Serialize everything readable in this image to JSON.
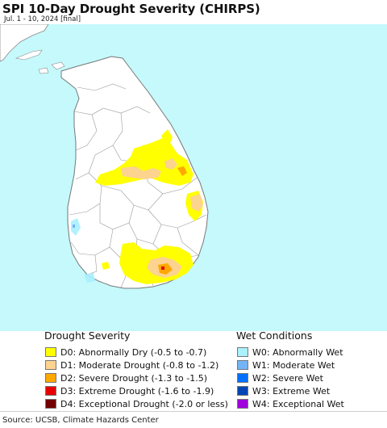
{
  "header": {
    "title": "SPI 10-Day Drought Severity (CHIRPS)",
    "subtitle": "Jul. 1 - 10, 2024 [final]"
  },
  "map": {
    "ocean_color": "#c5f9fb",
    "land_color": "#ffffff",
    "border_color": "#8a8a8a"
  },
  "legend": {
    "drought": {
      "heading": "Drought Severity",
      "items": [
        {
          "label": "D0: Abnormally Dry (-0.5 to -0.7)",
          "color": "#ffff00"
        },
        {
          "label": "D1: Moderate Drought (-0.8 to -1.2)",
          "color": "#fcd38f"
        },
        {
          "label": "D2: Severe Drought (-1.3 to -1.5)",
          "color": "#ffa800"
        },
        {
          "label": "D3: Extreme Drought (-1.6 to -1.9)",
          "color": "#e60000"
        },
        {
          "label": "D4: Exceptional Drought (-2.0 or less)",
          "color": "#730000"
        }
      ]
    },
    "wet": {
      "heading": "Wet Conditions",
      "items": [
        {
          "label": "W0: Abnormally Wet",
          "color": "#aaf0ff"
        },
        {
          "label": "W1: Moderate Wet",
          "color": "#74b4f6"
        },
        {
          "label": "W2: Severe Wet",
          "color": "#0070ff"
        },
        {
          "label": "W3: Extreme Wet",
          "color": "#0046b4"
        },
        {
          "label": "W4: Exceptional Wet",
          "color": "#a000dc"
        }
      ]
    }
  },
  "footer": {
    "source": "Source: UCSB, Climate Hazards Center"
  }
}
